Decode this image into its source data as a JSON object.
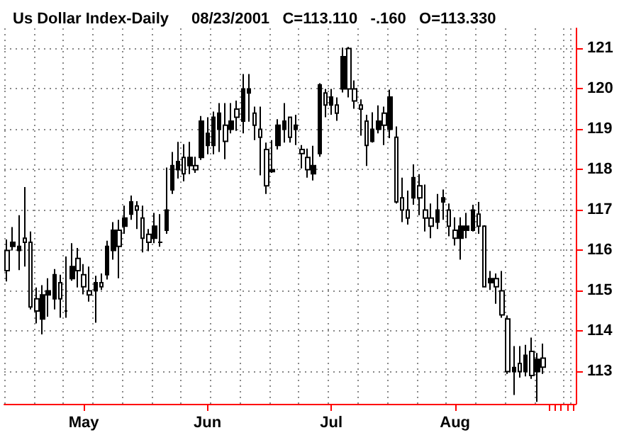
{
  "chart_data": {
    "type": "candlestick",
    "title": "Us Dollar Index-Daily",
    "subtitle": "08/23/2001   C=113.110   -.160   O=113.330",
    "categories": [
      null,
      null,
      null,
      null,
      null,
      null,
      null,
      null,
      null,
      null,
      null,
      null,
      null,
      "May",
      null,
      null,
      null,
      null,
      null,
      null,
      null,
      null,
      null,
      null,
      null,
      null,
      null,
      null,
      null,
      null,
      null,
      null,
      null,
      null,
      "Jun",
      null,
      null,
      null,
      null,
      null,
      null,
      null,
      null,
      null,
      null,
      null,
      null,
      null,
      null,
      null,
      null,
      null,
      null,
      null,
      null,
      "Jul",
      null,
      null,
      null,
      null,
      null,
      null,
      null,
      null,
      null,
      null,
      null,
      null,
      null,
      null,
      null,
      null,
      null,
      null,
      null,
      null,
      "Aug",
      null,
      null,
      null,
      null,
      null,
      null,
      null,
      null,
      null,
      null,
      null,
      null,
      null,
      null,
      null
    ],
    "color": "#000000",
    "ohlc": [
      [
        116.0,
        116.27,
        115.23,
        115.5
      ],
      [
        116.1,
        116.58,
        116.0,
        116.2
      ],
      [
        116.0,
        116.87,
        115.51,
        116.1
      ],
      [
        116.3,
        117.57,
        115.6,
        116.2
      ],
      [
        116.2,
        116.47,
        114.54,
        114.6
      ],
      [
        114.8,
        115.08,
        114.19,
        114.5
      ],
      [
        114.3,
        115.14,
        113.92,
        114.9
      ],
      [
        114.9,
        115.31,
        114.36,
        115.0
      ],
      [
        114.8,
        115.54,
        114.54,
        115.4
      ],
      [
        115.2,
        115.4,
        114.33,
        114.8
      ],
      [
        114.5,
        115.85,
        114.33,
        114.5
      ],
      [
        115.3,
        116.18,
        115.25,
        115.6
      ],
      [
        115.8,
        116.06,
        115.08,
        115.5
      ],
      [
        115.4,
        115.66,
        114.91,
        115.1
      ],
      [
        115.0,
        115.6,
        114.73,
        114.9
      ],
      [
        115.0,
        115.37,
        114.21,
        115.2
      ],
      [
        115.2,
        115.43,
        115.02,
        115.1
      ],
      [
        115.4,
        116.24,
        115.28,
        116.1
      ],
      [
        116.0,
        116.7,
        115.77,
        116.5
      ],
      [
        116.5,
        116.76,
        115.31,
        116.1
      ],
      [
        116.6,
        117.11,
        116.41,
        116.8
      ],
      [
        116.9,
        117.36,
        116.76,
        117.2
      ],
      [
        117.1,
        117.22,
        116.53,
        117.0
      ],
      [
        116.8,
        117.11,
        115.95,
        116.3
      ],
      [
        116.4,
        116.53,
        115.98,
        116.2
      ],
      [
        116.3,
        116.93,
        116.18,
        116.6
      ],
      [
        116.2,
        116.9,
        116.09,
        116.2
      ],
      [
        116.5,
        118.05,
        116.41,
        117.0
      ],
      [
        117.5,
        118.44,
        117.4,
        118.1
      ],
      [
        118.0,
        118.69,
        117.78,
        118.2
      ],
      [
        118.3,
        118.63,
        117.71,
        117.9
      ],
      [
        118.1,
        118.69,
        117.89,
        118.3
      ],
      [
        118.1,
        118.32,
        117.92,
        118.0
      ],
      [
        118.3,
        119.33,
        118.24,
        119.2
      ],
      [
        118.6,
        119.3,
        118.38,
        118.9
      ],
      [
        118.6,
        119.44,
        118.38,
        119.3
      ],
      [
        119.0,
        119.65,
        118.44,
        119.4
      ],
      [
        119.1,
        119.65,
        118.26,
        118.7
      ],
      [
        119.0,
        119.65,
        118.9,
        119.2
      ],
      [
        119.5,
        119.71,
        118.96,
        119.3
      ],
      [
        119.2,
        120.37,
        118.9,
        120.0
      ],
      [
        119.9,
        120.37,
        119.19,
        120.0
      ],
      [
        119.4,
        119.56,
        118.73,
        119.1
      ],
      [
        119.0,
        119.56,
        117.86,
        118.8
      ],
      [
        118.5,
        118.67,
        117.4,
        117.6
      ],
      [
        117.95,
        118.73,
        117.92,
        118.0
      ],
      [
        118.6,
        119.25,
        118.5,
        119.1
      ],
      [
        119.0,
        119.65,
        118.67,
        119.2
      ],
      [
        119.3,
        119.3,
        118.67,
        118.8
      ],
      [
        119.0,
        119.36,
        118.61,
        119.1
      ],
      [
        118.5,
        118.61,
        118.03,
        118.4
      ],
      [
        118.3,
        118.52,
        117.8,
        118.0
      ],
      [
        117.9,
        118.59,
        117.73,
        118.1
      ],
      [
        118.4,
        120.14,
        118.32,
        120.1
      ],
      [
        119.9,
        120.0,
        119.3,
        119.6
      ],
      [
        119.6,
        120.0,
        119.36,
        119.8
      ],
      [
        119.6,
        119.79,
        119.21,
        119.4
      ],
      [
        120.0,
        121.02,
        119.91,
        120.8
      ],
      [
        121.0,
        121.04,
        119.79,
        120.0
      ],
      [
        120.0,
        120.21,
        119.51,
        119.7
      ],
      [
        119.6,
        119.74,
        118.84,
        119.5
      ],
      [
        119.2,
        119.36,
        118.09,
        118.6
      ],
      [
        118.7,
        119.42,
        118.67,
        119.0
      ],
      [
        119.0,
        119.59,
        118.9,
        119.2
      ],
      [
        119.4,
        119.56,
        118.61,
        119.1
      ],
      [
        119.0,
        119.98,
        118.78,
        119.8
      ],
      [
        118.8,
        119.07,
        117.16,
        117.2
      ],
      [
        117.3,
        117.8,
        116.7,
        117.0
      ],
      [
        117.0,
        117.48,
        116.64,
        116.8
      ],
      [
        117.3,
        118.13,
        117.13,
        117.8
      ],
      [
        117.6,
        117.89,
        116.87,
        117.3
      ],
      [
        117.0,
        117.63,
        116.47,
        116.8
      ],
      [
        116.8,
        117.16,
        116.3,
        116.6
      ],
      [
        116.7,
        117.4,
        116.53,
        117.0
      ],
      [
        117.2,
        117.51,
        116.76,
        117.3
      ],
      [
        117.0,
        117.16,
        116.35,
        116.6
      ],
      [
        116.5,
        116.82,
        116.12,
        116.3
      ],
      [
        116.3,
        116.82,
        115.77,
        116.6
      ],
      [
        116.5,
        116.93,
        116.3,
        116.6
      ],
      [
        116.5,
        117.13,
        116.47,
        117.0
      ],
      [
        116.9,
        117.2,
        116.41,
        116.6
      ],
      [
        116.6,
        116.62,
        115.08,
        115.1
      ],
      [
        115.2,
        115.49,
        115.02,
        115.3
      ],
      [
        115.3,
        115.43,
        114.68,
        115.1
      ],
      [
        115.0,
        115.49,
        114.33,
        114.4
      ],
      [
        114.3,
        114.39,
        112.94,
        113.0
      ],
      [
        113.0,
        113.63,
        112.42,
        113.1
      ],
      [
        113.2,
        113.63,
        112.85,
        113.0
      ],
      [
        113.0,
        113.66,
        112.88,
        113.4
      ],
      [
        113.5,
        113.84,
        112.82,
        112.9
      ],
      [
        113.0,
        113.46,
        112.25,
        113.3
      ],
      [
        113.33,
        113.69,
        112.94,
        113.11
      ]
    ],
    "ylim": [
      112.2,
      121.5
    ],
    "yticks": [
      113,
      114,
      115,
      116,
      117,
      118,
      119,
      120,
      121
    ],
    "grid": true
  }
}
